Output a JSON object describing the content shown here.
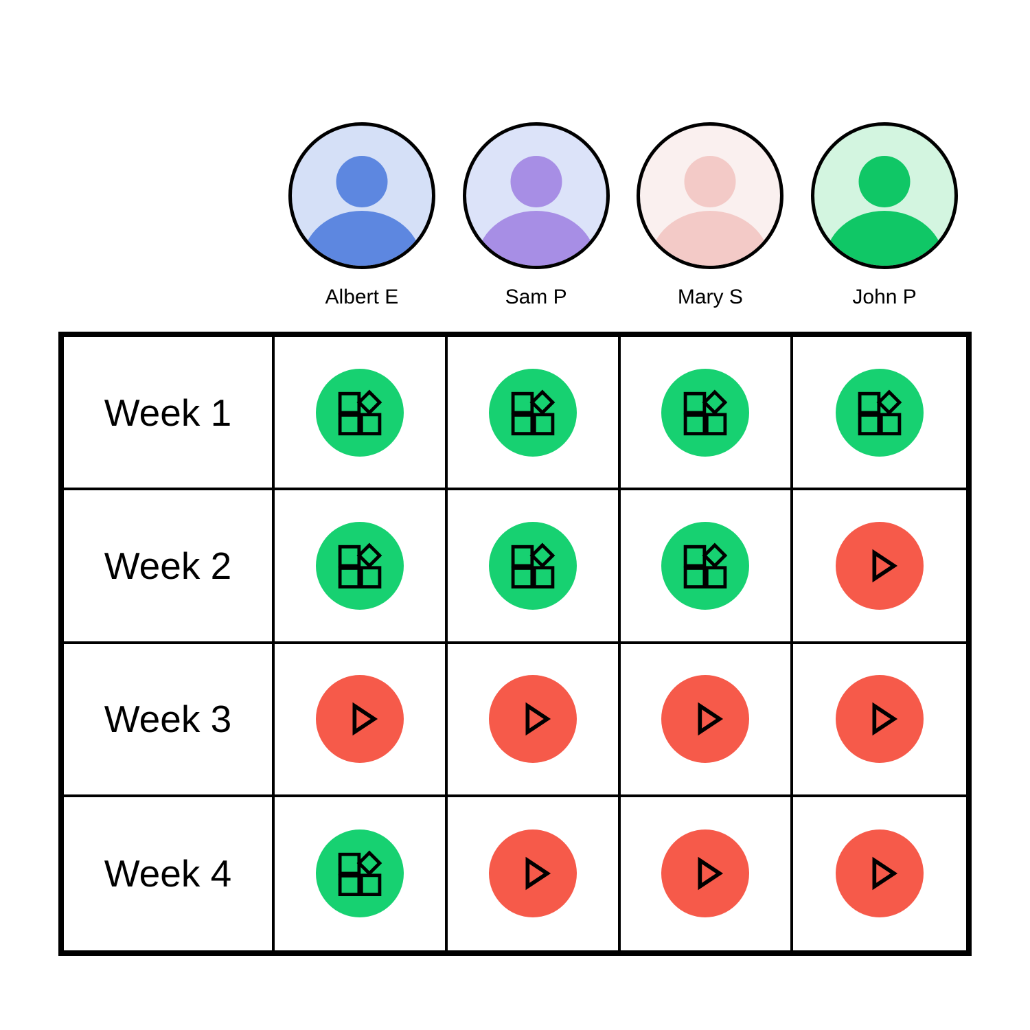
{
  "people": [
    {
      "name": "Albert E",
      "avatar_bg": "#D5E0F7",
      "avatar_fg": "#5D87E0"
    },
    {
      "name": "Sam P",
      "avatar_bg": "#DCE3F9",
      "avatar_fg": "#A78EE5"
    },
    {
      "name": "Mary S",
      "avatar_bg": "#FAF0EF",
      "avatar_fg": "#F3CAC7"
    },
    {
      "name": "John P",
      "avatar_bg": "#D3F5E0",
      "avatar_fg": "#10C766"
    }
  ],
  "statuses": {
    "done": {
      "color": "#17D171",
      "icon": "blocks-icon"
    },
    "in_progress": {
      "color": "#F65A4A",
      "icon": "play-icon"
    }
  },
  "rows": [
    {
      "label": "Week 1",
      "cells": [
        "done",
        "done",
        "done",
        "done"
      ]
    },
    {
      "label": "Week 2",
      "cells": [
        "done",
        "done",
        "done",
        "in_progress"
      ]
    },
    {
      "label": "Week 3",
      "cells": [
        "in_progress",
        "in_progress",
        "in_progress",
        "in_progress"
      ]
    },
    {
      "label": "Week 4",
      "cells": [
        "done",
        "in_progress",
        "in_progress",
        "in_progress"
      ]
    }
  ]
}
